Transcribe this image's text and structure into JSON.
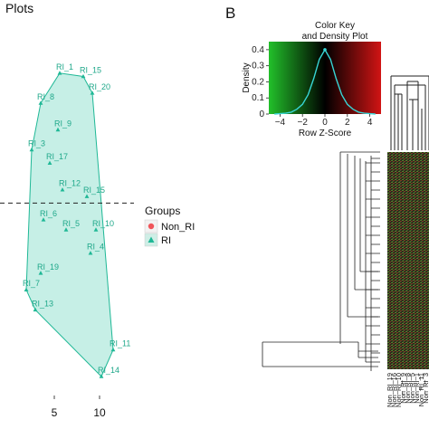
{
  "panel_a": {
    "title": "Plots",
    "legend": {
      "title": "Groups",
      "entries": [
        {
          "name": "Non_RI",
          "color": "#f0555a",
          "shape": "circle"
        },
        {
          "name": "RI",
          "color": "#1fb896",
          "shape": "triangle"
        }
      ]
    }
  },
  "panel_b": {
    "letter": "B",
    "color_key": {
      "title_line1": "Color Key",
      "title_line2": "and Density Plot",
      "xlabel": "Row Z-Score",
      "ylabel": "Density",
      "xticks": [
        "−4",
        "−2",
        "0",
        "2",
        "4"
      ],
      "yticks": [
        "0",
        "0.1",
        "0.2",
        "0.3",
        "0.4"
      ],
      "colors": {
        "low": "#22c02a",
        "mid": "#000000",
        "high": "#d11414"
      },
      "density_color": "#38d6d6"
    },
    "column_labels": [
      "Non_RI_19",
      "Non_RI_16",
      "Non_RI_10",
      "Non_RI_9",
      "Non_RI_8",
      "Non_RI_5",
      "Non_RI_1",
      "Non_RI_11",
      "Non_RI_3"
    ]
  },
  "chart_data": [
    {
      "type": "scatter",
      "title": "Plots",
      "xlabel": "",
      "ylabel": "",
      "xticks": [
        5,
        10
      ],
      "xlim": [
        -1,
        13
      ],
      "ylim": [
        -5.5,
        4.6
      ],
      "reference_line": {
        "y": 0,
        "style": "dashed"
      },
      "hull": true,
      "grid": false,
      "legend_position": "right",
      "series": [
        {
          "name": "RI",
          "points": [
            {
              "label": "RI_1",
              "x": 5.6,
              "y": 3.9
            },
            {
              "label": "RI_15",
              "x": 8.2,
              "y": 3.8
            },
            {
              "label": "RI_20",
              "x": 9.2,
              "y": 3.3
            },
            {
              "label": "RI_8",
              "x": 3.5,
              "y": 3.0
            },
            {
              "label": "RI_9",
              "x": 5.4,
              "y": 2.2
            },
            {
              "label": "RI_3",
              "x": 2.5,
              "y": 1.6
            },
            {
              "label": "RI_17",
              "x": 4.5,
              "y": 1.2
            },
            {
              "label": "RI_12",
              "x": 5.9,
              "y": 0.4
            },
            {
              "label": "RI_15",
              "x": 8.6,
              "y": 0.2
            },
            {
              "label": "RI_6",
              "x": 3.8,
              "y": -0.5
            },
            {
              "label": "RI_5",
              "x": 6.3,
              "y": -0.8
            },
            {
              "label": "RI_10",
              "x": 9.6,
              "y": -0.8
            },
            {
              "label": "RI_4",
              "x": 9.0,
              "y": -1.5
            },
            {
              "label": "RI_19",
              "x": 3.5,
              "y": -2.1
            },
            {
              "label": "RI_7",
              "x": 1.9,
              "y": -2.6
            },
            {
              "label": "RI_13",
              "x": 2.9,
              "y": -3.2
            },
            {
              "label": "RI_11",
              "x": 11.5,
              "y": -4.4
            },
            {
              "label": "RI_14",
              "x": 10.2,
              "y": -5.2
            }
          ]
        }
      ]
    },
    {
      "type": "heatmap",
      "title": "",
      "colorscale": [
        "#22c02a",
        "#000000",
        "#d11414"
      ],
      "columns": 9,
      "dendrogram": "rows-and-columns"
    },
    {
      "type": "line",
      "title": "Color Key and Density Plot",
      "xlabel": "Row Z-Score",
      "ylabel": "Density",
      "xlim": [
        -5,
        5
      ],
      "ylim": [
        0,
        0.45
      ],
      "x": [
        -4.5,
        -4,
        -3.5,
        -3,
        -2.5,
        -2,
        -1.5,
        -1,
        -0.5,
        0,
        0.5,
        1,
        1.5,
        2,
        2.5,
        3,
        3.5,
        4,
        4.5
      ],
      "values": [
        0.0,
        0.002,
        0.005,
        0.012,
        0.03,
        0.06,
        0.12,
        0.22,
        0.34,
        0.4,
        0.34,
        0.22,
        0.12,
        0.06,
        0.03,
        0.012,
        0.005,
        0.002,
        0.0
      ]
    }
  ]
}
